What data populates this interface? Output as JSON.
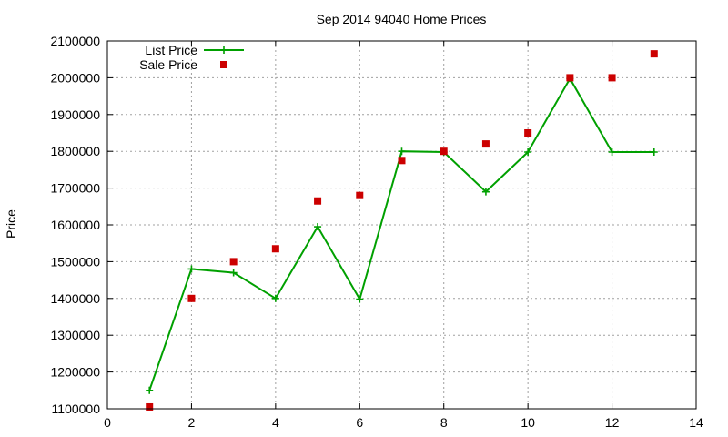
{
  "chart_data": {
    "type": "line",
    "title": "Sep 2014 94040 Home Prices",
    "xlabel": "",
    "ylabel": "Price",
    "xlim": [
      0,
      14
    ],
    "ylim": [
      1100000,
      2100000
    ],
    "xticks": [
      0,
      2,
      4,
      6,
      8,
      10,
      12,
      14
    ],
    "yticks": [
      1100000,
      1200000,
      1300000,
      1400000,
      1500000,
      1600000,
      1700000,
      1800000,
      1900000,
      2000000,
      2100000
    ],
    "grid": true,
    "legend_position": "top-left",
    "series": [
      {
        "name": "List Price",
        "style": "line-plus",
        "color": "#00a000",
        "x": [
          1,
          2,
          3,
          4,
          5,
          6,
          7,
          8,
          9,
          10,
          11,
          12,
          13
        ],
        "y": [
          1150000,
          1480000,
          1470000,
          1400000,
          1595000,
          1398000,
          1800000,
          1798000,
          1690000,
          1798000,
          1998000,
          1798000,
          1798000
        ]
      },
      {
        "name": "Sale Price",
        "style": "square",
        "color": "#cc0000",
        "x": [
          1,
          2,
          3,
          4,
          5,
          6,
          7,
          8,
          9,
          10,
          11,
          12,
          13
        ],
        "y": [
          1105000,
          1400000,
          1500000,
          1535000,
          1665000,
          1680000,
          1775000,
          1800000,
          1820000,
          1850000,
          2000000,
          2000000,
          2065000
        ]
      }
    ]
  }
}
